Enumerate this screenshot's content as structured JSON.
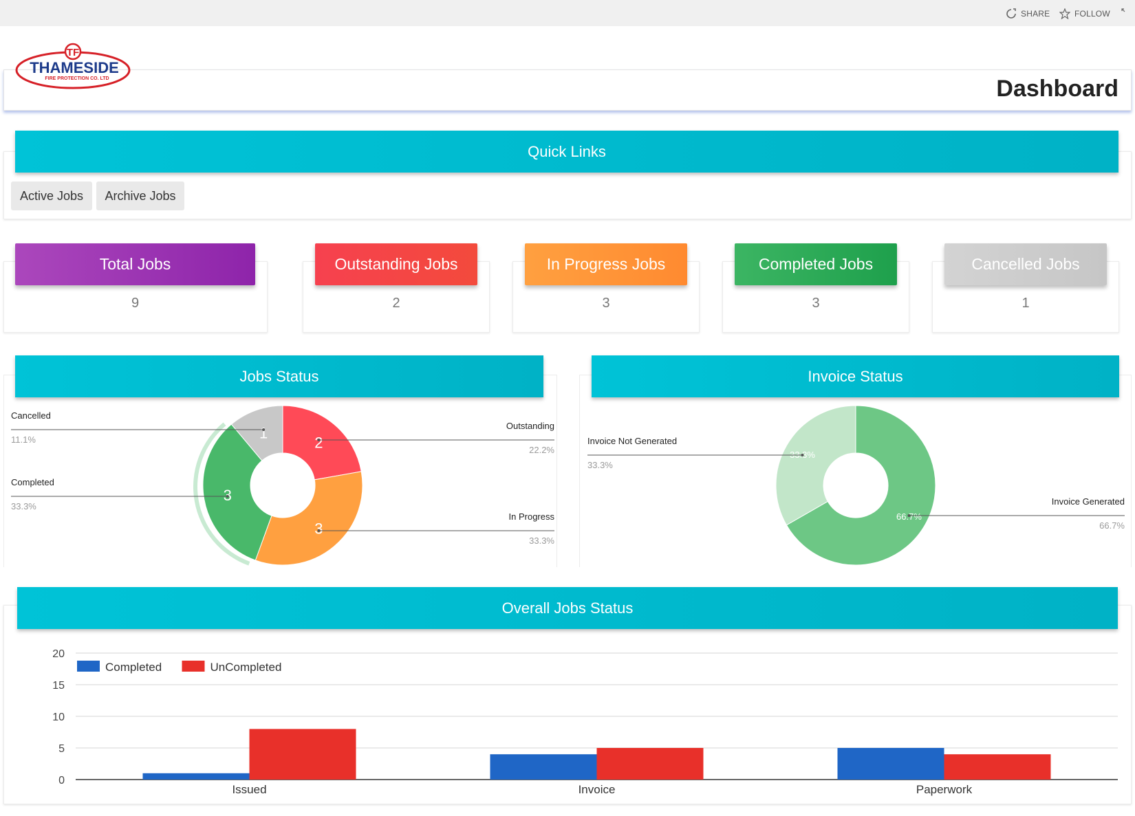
{
  "suitebar": {
    "share_label": "SHARE",
    "follow_label": "FOLLOW"
  },
  "header": {
    "logo_text": "THAMESIDE",
    "logo_subtext": "FIRE PROTECTION CO. LTD",
    "title": "Dashboard"
  },
  "quick_links": {
    "title": "Quick Links",
    "buttons": [
      "Active Jobs",
      "Archive Jobs"
    ]
  },
  "stats": [
    {
      "label": "Total Jobs",
      "value": "9",
      "color": "#9c27b0"
    },
    {
      "label": "Outstanding Jobs",
      "value": "2",
      "color": "#f44352"
    },
    {
      "label": "In Progress Jobs",
      "value": "3",
      "color": "#ff9433"
    },
    {
      "label": "Completed Jobs",
      "value": "3",
      "color": "#2eaa57"
    },
    {
      "label": "Cancelled Jobs",
      "value": "1",
      "color": "#cfcfcf"
    }
  ],
  "chart_data": [
    {
      "type": "pie",
      "title": "Jobs Status",
      "donut": true,
      "slices": [
        {
          "label": "Outstanding",
          "value": 2,
          "percent": "22.2%",
          "color": "#ff4a57"
        },
        {
          "label": "In Progress",
          "value": 3,
          "percent": "33.3%",
          "color": "#ffa040"
        },
        {
          "label": "Completed",
          "value": 3,
          "percent": "33.3%",
          "color": "#49b86a"
        },
        {
          "label": "Cancelled",
          "value": 1,
          "percent": "11.1%",
          "color": "#c8c8c8"
        }
      ]
    },
    {
      "type": "pie",
      "title": "Invoice Status",
      "donut": true,
      "slices": [
        {
          "label": "Invoice Generated",
          "value": 66.7,
          "percent": "66.7%",
          "color": "#6dc785"
        },
        {
          "label": "Invoice Not Generated",
          "value": 33.3,
          "percent": "33.3%",
          "color": "#c2e6c9"
        }
      ]
    },
    {
      "type": "bar",
      "title": "Overall Jobs Status",
      "categories": [
        "Issued",
        "Invoice",
        "Paperwork"
      ],
      "series": [
        {
          "name": "Completed",
          "values": [
            1,
            4,
            5
          ],
          "color": "#1f66c6"
        },
        {
          "name": "UnCompleted",
          "values": [
            8,
            5,
            4
          ],
          "color": "#e8302a"
        }
      ],
      "ylim": [
        0,
        20
      ],
      "yticks": [
        "0",
        "5",
        "10",
        "15",
        "20"
      ],
      "legend_position": "top-left",
      "grid": true
    }
  ]
}
